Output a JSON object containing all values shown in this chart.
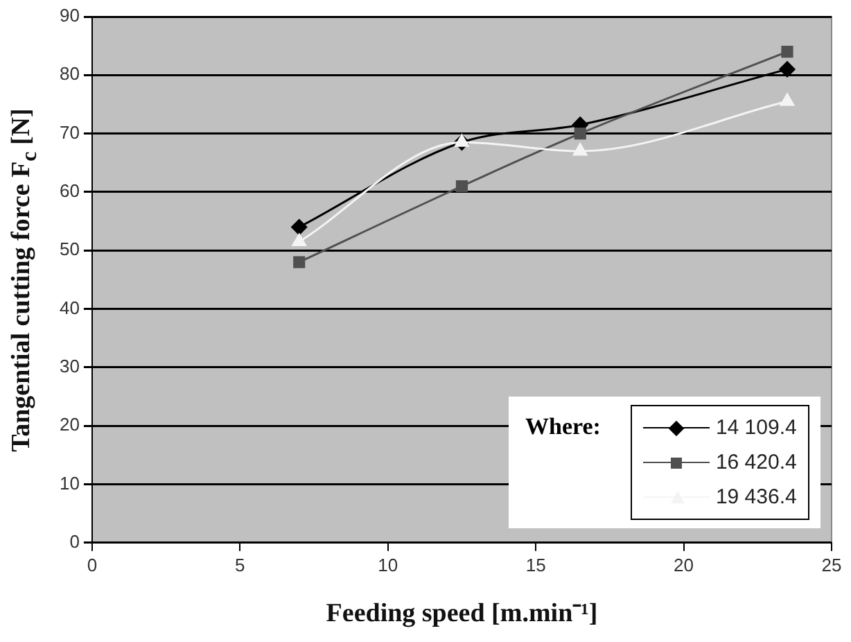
{
  "chart_data": {
    "type": "line",
    "xlabel": "Feeding speed [m.min⁻¹]",
    "ylabel": "Tangential cutting force F$_{c}$ [N]",
    "legend_title": "Where:",
    "x": [
      7,
      12.5,
      16.5,
      23.5
    ],
    "series": [
      {
        "name": "14 109.4",
        "color": "#000000",
        "marker": "diamond",
        "values": [
          54,
          68.5,
          71.5,
          81
        ]
      },
      {
        "name": "16 420.4",
        "color": "#505050",
        "marker": "square",
        "values": [
          48,
          61,
          70,
          84
        ]
      },
      {
        "name": "19 436.4",
        "color": "#f4f4f4",
        "marker": "triangle",
        "values": [
          51.5,
          68.5,
          67,
          75.5
        ]
      }
    ],
    "xlim": [
      0,
      25
    ],
    "xticks": [
      0,
      5,
      10,
      15,
      20,
      25
    ],
    "ylim": [
      0,
      90
    ],
    "yticks": [
      0,
      10,
      20,
      30,
      40,
      50,
      60,
      70,
      80,
      90
    ],
    "grid": "y",
    "legend": "bottom right"
  }
}
